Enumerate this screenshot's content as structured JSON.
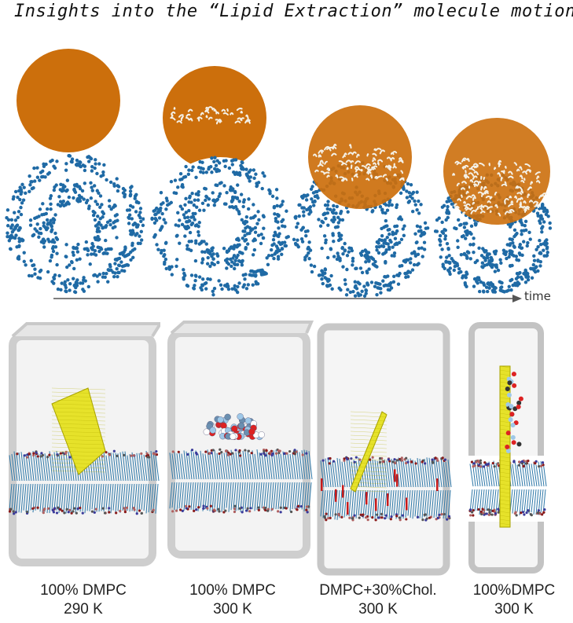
{
  "title": "Insights into the “Lipid Extraction” molecule motion",
  "timeline": {
    "label": "time"
  },
  "colors": {
    "nanosheet_orange": "#cc6f0c",
    "vesicle_blue": "#1f6aa5",
    "lipid_white": "#f4f0e6",
    "graphene_yellow": "#e6e22a",
    "box_gray": "#cfcfcf",
    "cholesterol_red": "#c81a1a"
  },
  "stages": [
    {
      "extraction": 0.0
    },
    {
      "extraction": 0.25
    },
    {
      "extraction": 0.55
    },
    {
      "extraction": 0.85
    }
  ],
  "simulations": [
    {
      "line1": "100% DMPC",
      "line2": "290 K"
    },
    {
      "line1": "100% DMPC",
      "line2": "300 K"
    },
    {
      "line1": "DMPC+30%Chol.",
      "line2": "300 K"
    },
    {
      "line1": "100%DMPC",
      "line2": "300 K"
    }
  ]
}
